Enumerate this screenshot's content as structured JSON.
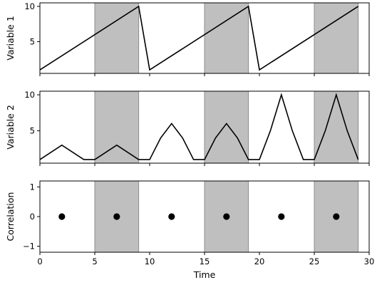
{
  "chart_data": [
    {
      "type": "line",
      "ylabel": "Variable 1",
      "xlim": [
        0,
        30
      ],
      "ylim": [
        0.5,
        10.5
      ],
      "yticks": [
        5,
        10
      ],
      "shaded_x_ranges": [
        [
          5,
          9
        ],
        [
          15,
          19
        ],
        [
          25,
          29
        ]
      ],
      "series": [
        {
          "x": [
            0,
            9,
            10,
            19,
            20,
            29
          ],
          "y": [
            1,
            10,
            1,
            10,
            1,
            10
          ]
        }
      ]
    },
    {
      "type": "line",
      "ylabel": "Variable 2",
      "xlim": [
        0,
        30
      ],
      "ylim": [
        0.5,
        10.5
      ],
      "yticks": [
        5,
        10
      ],
      "shaded_x_ranges": [
        [
          5,
          9
        ],
        [
          15,
          19
        ],
        [
          25,
          29
        ]
      ],
      "series": [
        {
          "x": [
            0,
            2,
            4,
            5,
            7,
            9,
            10,
            11,
            12,
            13,
            14,
            15,
            16,
            17,
            18,
            19,
            20,
            21,
            22,
            23,
            24,
            25,
            26,
            27,
            28,
            29
          ],
          "y": [
            1,
            3,
            1,
            1,
            3,
            1,
            1,
            4,
            6,
            4,
            1,
            1,
            4,
            6,
            4,
            1,
            1,
            5,
            10,
            5,
            1,
            1,
            5,
            10,
            5,
            1
          ]
        }
      ]
    },
    {
      "type": "scatter",
      "ylabel": "Correlation",
      "xlabel": "Time",
      "xlim": [
        0,
        30
      ],
      "ylim": [
        -1.2,
        1.2
      ],
      "xticks": [
        0,
        5,
        10,
        15,
        20,
        25,
        30
      ],
      "yticks": [
        -1,
        0,
        1
      ],
      "shaded_x_ranges": [
        [
          5,
          9
        ],
        [
          15,
          19
        ],
        [
          25,
          29
        ]
      ],
      "series": [
        {
          "x": [
            2,
            7,
            12,
            17,
            22,
            27
          ],
          "y": [
            0,
            0,
            0,
            0,
            0,
            0
          ]
        }
      ]
    }
  ],
  "colors": {
    "line": "#000000",
    "marker": "#000000",
    "shade": "#bfbfbf",
    "shade_edge": "#8c8c8c",
    "frame": "#000000"
  }
}
